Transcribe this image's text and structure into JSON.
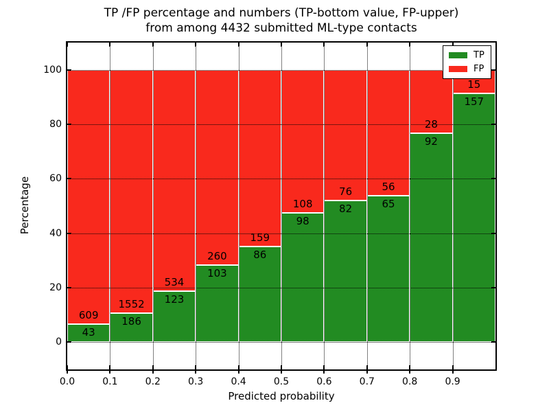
{
  "title": {
    "line1": "TP /FP percentage and numbers (TP-bottom value, FP-upper)",
    "line2": "from among 4432 submitted ML-type contacts"
  },
  "legend": {
    "position": "upper right",
    "items": [
      {
        "label": "TP",
        "color": "#228b22"
      },
      {
        "label": "FP",
        "color": "#f9291d"
      }
    ]
  },
  "chart_data": {
    "type": "bar",
    "stacked": true,
    "normalized": "each bar scaled to 100%",
    "title": "TP /FP percentage and numbers (TP-bottom value, FP-upper) from among 4432 submitted ML-type contacts",
    "total_contacts": 4432,
    "xlabel": "Predicted probability",
    "ylabel": "Percentage",
    "bin_width": 0.1,
    "bin_starts": [
      0.0,
      0.1,
      0.2,
      0.3,
      0.4,
      0.5,
      0.6,
      0.7,
      0.8,
      0.9
    ],
    "series": [
      {
        "name": "TP",
        "color": "#228b22",
        "counts": [
          43,
          186,
          123,
          103,
          86,
          98,
          82,
          65,
          92,
          157
        ]
      },
      {
        "name": "FP",
        "color": "#f9291d",
        "counts": [
          609,
          1552,
          534,
          260,
          159,
          108,
          76,
          56,
          28,
          15
        ]
      }
    ],
    "tp_percent": [
      6.6,
      10.7,
      18.7,
      28.4,
      35.1,
      47.6,
      51.9,
      53.7,
      76.7,
      91.3
    ],
    "xticks": [
      0.0,
      0.1,
      0.2,
      0.3,
      0.4,
      0.5,
      0.6,
      0.7,
      0.8,
      0.9
    ],
    "yticks": [
      0,
      20,
      40,
      60,
      80,
      100
    ],
    "xlim": [
      0.0,
      1.0
    ],
    "ylim": [
      -10,
      110
    ],
    "grid": true,
    "grid_style": "dotted black, drawn above bars",
    "bar_edge_color": "#ffffff",
    "legend_position": "upper right"
  }
}
